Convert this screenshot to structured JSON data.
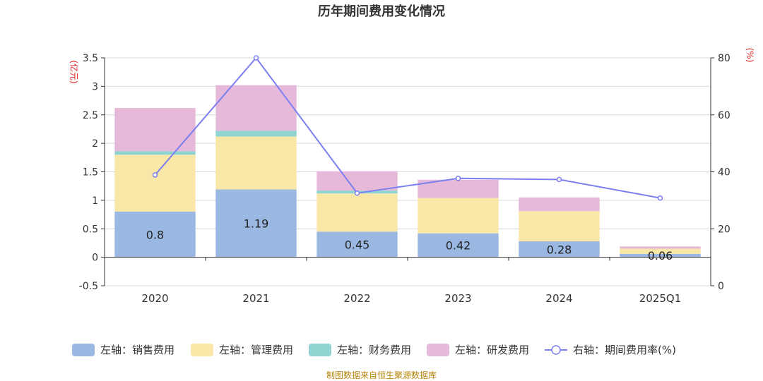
{
  "chart_data": {
    "type": "bar",
    "title": "历年期间费用变化情况",
    "categories": [
      "2020",
      "2021",
      "2022",
      "2023",
      "2024",
      "2025Q1"
    ],
    "left_axis": {
      "unit": "(亿元)",
      "ylim": [
        -0.5,
        3.5
      ],
      "ticks": [
        "3.5",
        "3",
        "2.5",
        "2",
        "1.5",
        "1",
        "0.5",
        "0",
        "-0.5"
      ]
    },
    "right_axis": {
      "unit": "(%)",
      "ylim": [
        0,
        80
      ],
      "ticks": [
        "80",
        "60",
        "40",
        "20",
        "0"
      ]
    },
    "series": [
      {
        "name": "左轴：销售费用",
        "type": "bar",
        "stack": true,
        "color": "#9ab8e2",
        "values": [
          0.8,
          1.19,
          0.45,
          0.42,
          0.28,
          0.06
        ],
        "data_labels": [
          "0.8",
          "1.19",
          "0.45",
          "0.42",
          "0.28",
          "0.06"
        ]
      },
      {
        "name": "左轴：管理费用",
        "type": "bar",
        "stack": true,
        "color": "#f8e7a7",
        "values": [
          1.0,
          0.93,
          0.67,
          0.62,
          0.53,
          0.09
        ]
      },
      {
        "name": "左轴：财务费用",
        "type": "bar",
        "stack": true,
        "color": "#90d4d2",
        "values": [
          0.06,
          0.1,
          0.05,
          0.0,
          0.0,
          0.0
        ]
      },
      {
        "name": "左轴：研发费用",
        "type": "bar",
        "stack": true,
        "color": "#e6b9da",
        "values": [
          0.76,
          0.8,
          0.34,
          0.32,
          0.24,
          0.04
        ]
      },
      {
        "name": "右轴：期间费用率(%)",
        "type": "line",
        "axis": "right",
        "color": "#7b7ff0",
        "values": [
          38.9,
          80.0,
          32.5,
          37.7,
          37.3,
          30.8
        ]
      }
    ],
    "grid": true,
    "legend_position": "bottom"
  },
  "source": "制图数据来自恒生聚源数据库"
}
